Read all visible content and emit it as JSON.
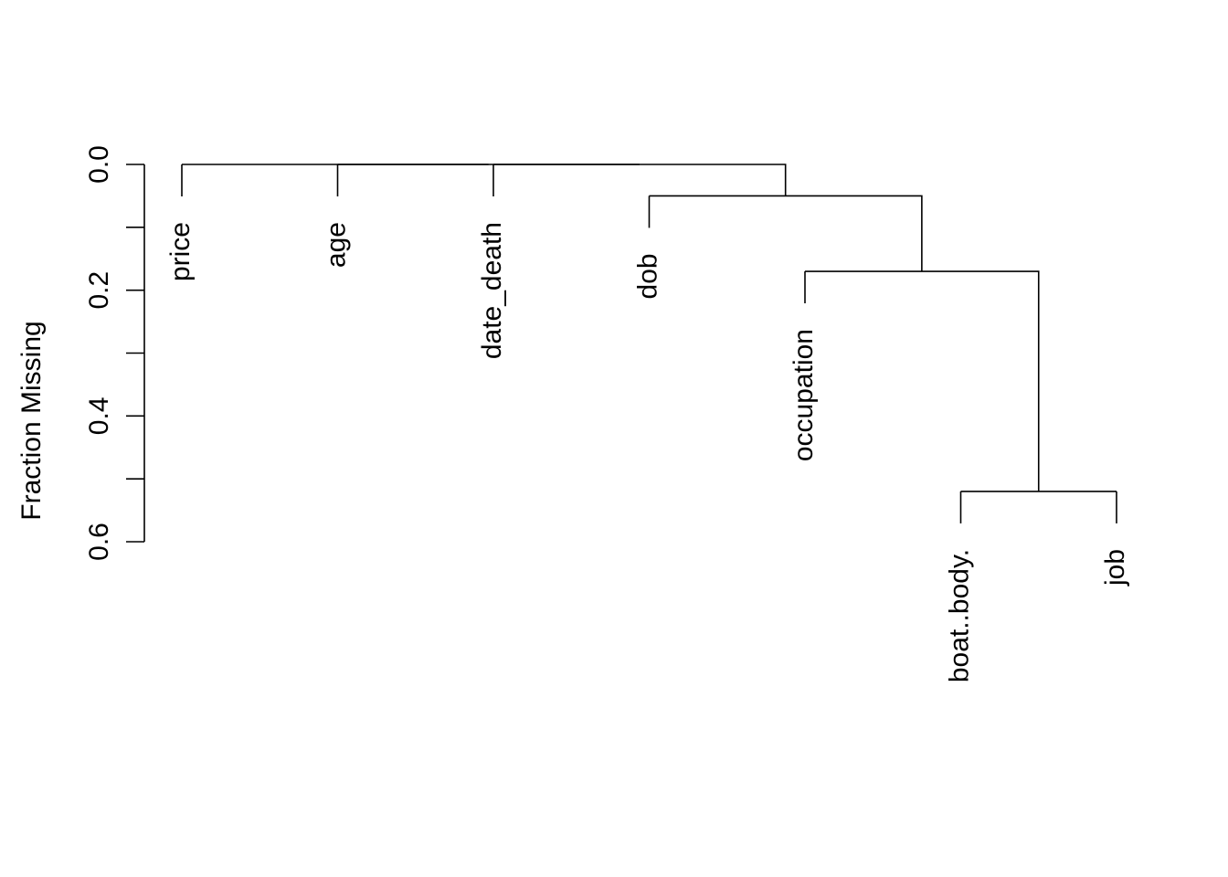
{
  "chart_data": {
    "type": "dendrogram",
    "ylabel": "Fraction Missing",
    "ylim": [
      0,
      0.6
    ],
    "y_axis_inverted": true,
    "yticks": [
      0.0,
      0.1,
      0.2,
      0.3,
      0.4,
      0.5,
      0.6
    ],
    "ytick_labels": [
      "0.0",
      "0.2",
      "0.4",
      "0.6"
    ],
    "ytick_label_values": [
      0.0,
      0.2,
      0.4,
      0.6
    ],
    "leaves": [
      {
        "label": "price",
        "fraction_missing": 0.0
      },
      {
        "label": "age",
        "fraction_missing": 0.0
      },
      {
        "label": "date_death",
        "fraction_missing": 0.0
      },
      {
        "label": "dob",
        "fraction_missing": 0.05
      },
      {
        "label": "occupation",
        "fraction_missing": 0.17
      },
      {
        "label": "boat..body.",
        "fraction_missing": 0.52
      },
      {
        "label": "job",
        "fraction_missing": 0.52
      }
    ],
    "merges": [
      {
        "id": "m1",
        "children": [
          "boat..body.",
          "job"
        ],
        "height": 0.52
      },
      {
        "id": "m2",
        "children": [
          "occupation",
          "m1"
        ],
        "height": 0.17
      },
      {
        "id": "m3",
        "children": [
          "dob",
          "m2"
        ],
        "height": 0.05
      },
      {
        "id": "m4",
        "children": [
          "date_death",
          "m3"
        ],
        "height": 0.0
      },
      {
        "id": "m5",
        "children": [
          "age",
          "m4"
        ],
        "height": 0.0
      },
      {
        "id": "m6",
        "children": [
          "price",
          "m5"
        ],
        "height": 0.0
      }
    ],
    "grid": false,
    "legend": "none"
  }
}
